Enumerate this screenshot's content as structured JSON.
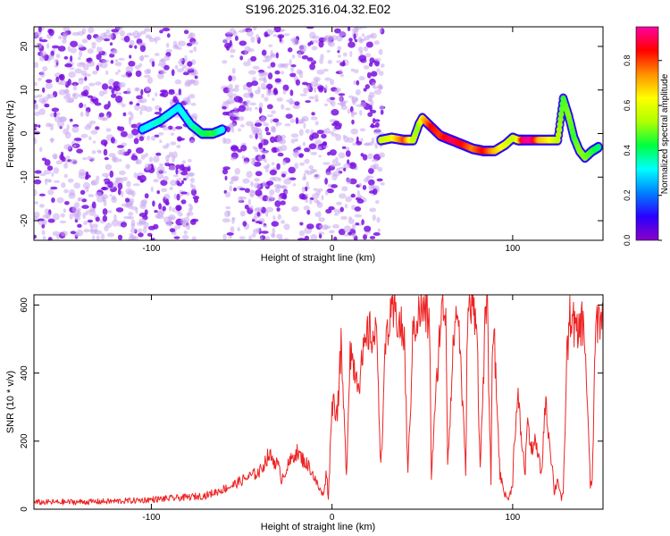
{
  "title": "S196.2025.316.04.32.E02",
  "chart_data": [
    {
      "type": "heatmap",
      "name": "spectrogram",
      "xlabel": "Height of straight line (km)",
      "ylabel": "Frequency (Hz)",
      "xlim": [
        -165,
        150
      ],
      "ylim": [
        -24.5,
        24.5
      ],
      "xticks": [
        -100,
        0,
        100
      ],
      "yticks": [
        -20,
        -10,
        0,
        10,
        20
      ],
      "colorbar": {
        "label": "Normalized spectral amplitude",
        "range": [
          0,
          0.95
        ],
        "ticks": [
          0.0,
          0.2,
          0.4,
          0.6,
          0.8
        ],
        "colors": [
          "#8a00c8",
          "#2a00ff",
          "#0080ff",
          "#00ffff",
          "#00ff40",
          "#b0ff00",
          "#ffff00",
          "#ff9000",
          "#ff0000",
          "#ff00a0"
        ]
      },
      "noise_regions": [
        [
          -165,
          -75
        ],
        [
          -60,
          28
        ]
      ],
      "ridge": {
        "x": [
          -105,
          -95,
          -85,
          -78,
          -72,
          -66,
          -60,
          27,
          33,
          40,
          45,
          48,
          50,
          55,
          60,
          66,
          72,
          78,
          84,
          90,
          96,
          100,
          103,
          106,
          110,
          115,
          120,
          125,
          128,
          131,
          134,
          137,
          140,
          144,
          148
        ],
        "y": [
          1,
          3,
          6,
          2,
          0,
          0,
          1,
          -1.5,
          -1,
          -1.5,
          -1.5,
          2,
          3.5,
          1.5,
          -0.5,
          -1.5,
          -2.5,
          -3.5,
          -4,
          -4,
          -2.5,
          -1,
          -1.5,
          -1.5,
          -1.5,
          -1.5,
          -1.5,
          -1.5,
          8,
          4,
          -1,
          -4,
          -5.5,
          -4,
          -3
        ],
        "amplitude": [
          0.3,
          0.35,
          0.3,
          0.35,
          0.4,
          0.45,
          0.3,
          0.55,
          0.6,
          0.8,
          0.55,
          0.5,
          0.65,
          0.85,
          0.8,
          0.9,
          0.85,
          0.75,
          0.85,
          0.7,
          0.6,
          0.55,
          0.6,
          0.9,
          0.95,
          0.7,
          0.65,
          0.55,
          0.45,
          0.5,
          0.45,
          0.5,
          0.5,
          0.45,
          0.4
        ]
      }
    },
    {
      "type": "line",
      "name": "snr",
      "xlabel": "Height of straight line (km)",
      "ylabel": "SNR (10 * v/v)",
      "xlim": [
        -165,
        150
      ],
      "ylim": [
        0,
        630
      ],
      "xticks": [
        -100,
        0,
        100
      ],
      "yticks": [
        0,
        200,
        400,
        600
      ],
      "color": "#ee2222",
      "series": [
        {
          "name": "SNR",
          "x": [
            -165,
            -130,
            -110,
            -95,
            -80,
            -70,
            -62,
            -55,
            -48,
            -40,
            -35,
            -30,
            -28,
            -20,
            -12,
            -8,
            -5,
            -3,
            -2,
            0,
            3,
            5,
            8,
            10,
            12,
            15,
            20,
            25,
            27,
            30,
            35,
            40,
            42,
            45,
            50,
            54,
            55,
            60,
            63,
            64,
            68,
            70,
            74,
            75,
            80,
            82,
            85,
            86,
            88,
            89,
            90,
            93,
            95,
            96,
            98,
            100,
            101,
            103,
            105,
            107,
            108,
            110,
            112,
            114,
            116,
            118,
            120,
            122,
            123,
            125,
            127,
            128,
            130,
            132,
            134,
            136,
            138,
            140,
            143,
            144,
            146,
            150
          ],
          "y": [
            20,
            22,
            25,
            30,
            35,
            40,
            55,
            70,
            90,
            110,
            160,
            130,
            90,
            170,
            120,
            70,
            40,
            110,
            30,
            320,
            290,
            470,
            100,
            480,
            420,
            380,
            520,
            500,
            120,
            520,
            580,
            500,
            100,
            540,
            590,
            550,
            100,
            560,
            600,
            140,
            560,
            570,
            110,
            580,
            590,
            110,
            580,
            560,
            80,
            550,
            470,
            100,
            60,
            40,
            30,
            80,
            220,
            320,
            200,
            100,
            280,
            170,
            200,
            160,
            100,
            320,
            220,
            120,
            50,
            90,
            30,
            40,
            450,
            580,
            540,
            500,
            560,
            500,
            70,
            80,
            540,
            580
          ]
        }
      ]
    }
  ]
}
